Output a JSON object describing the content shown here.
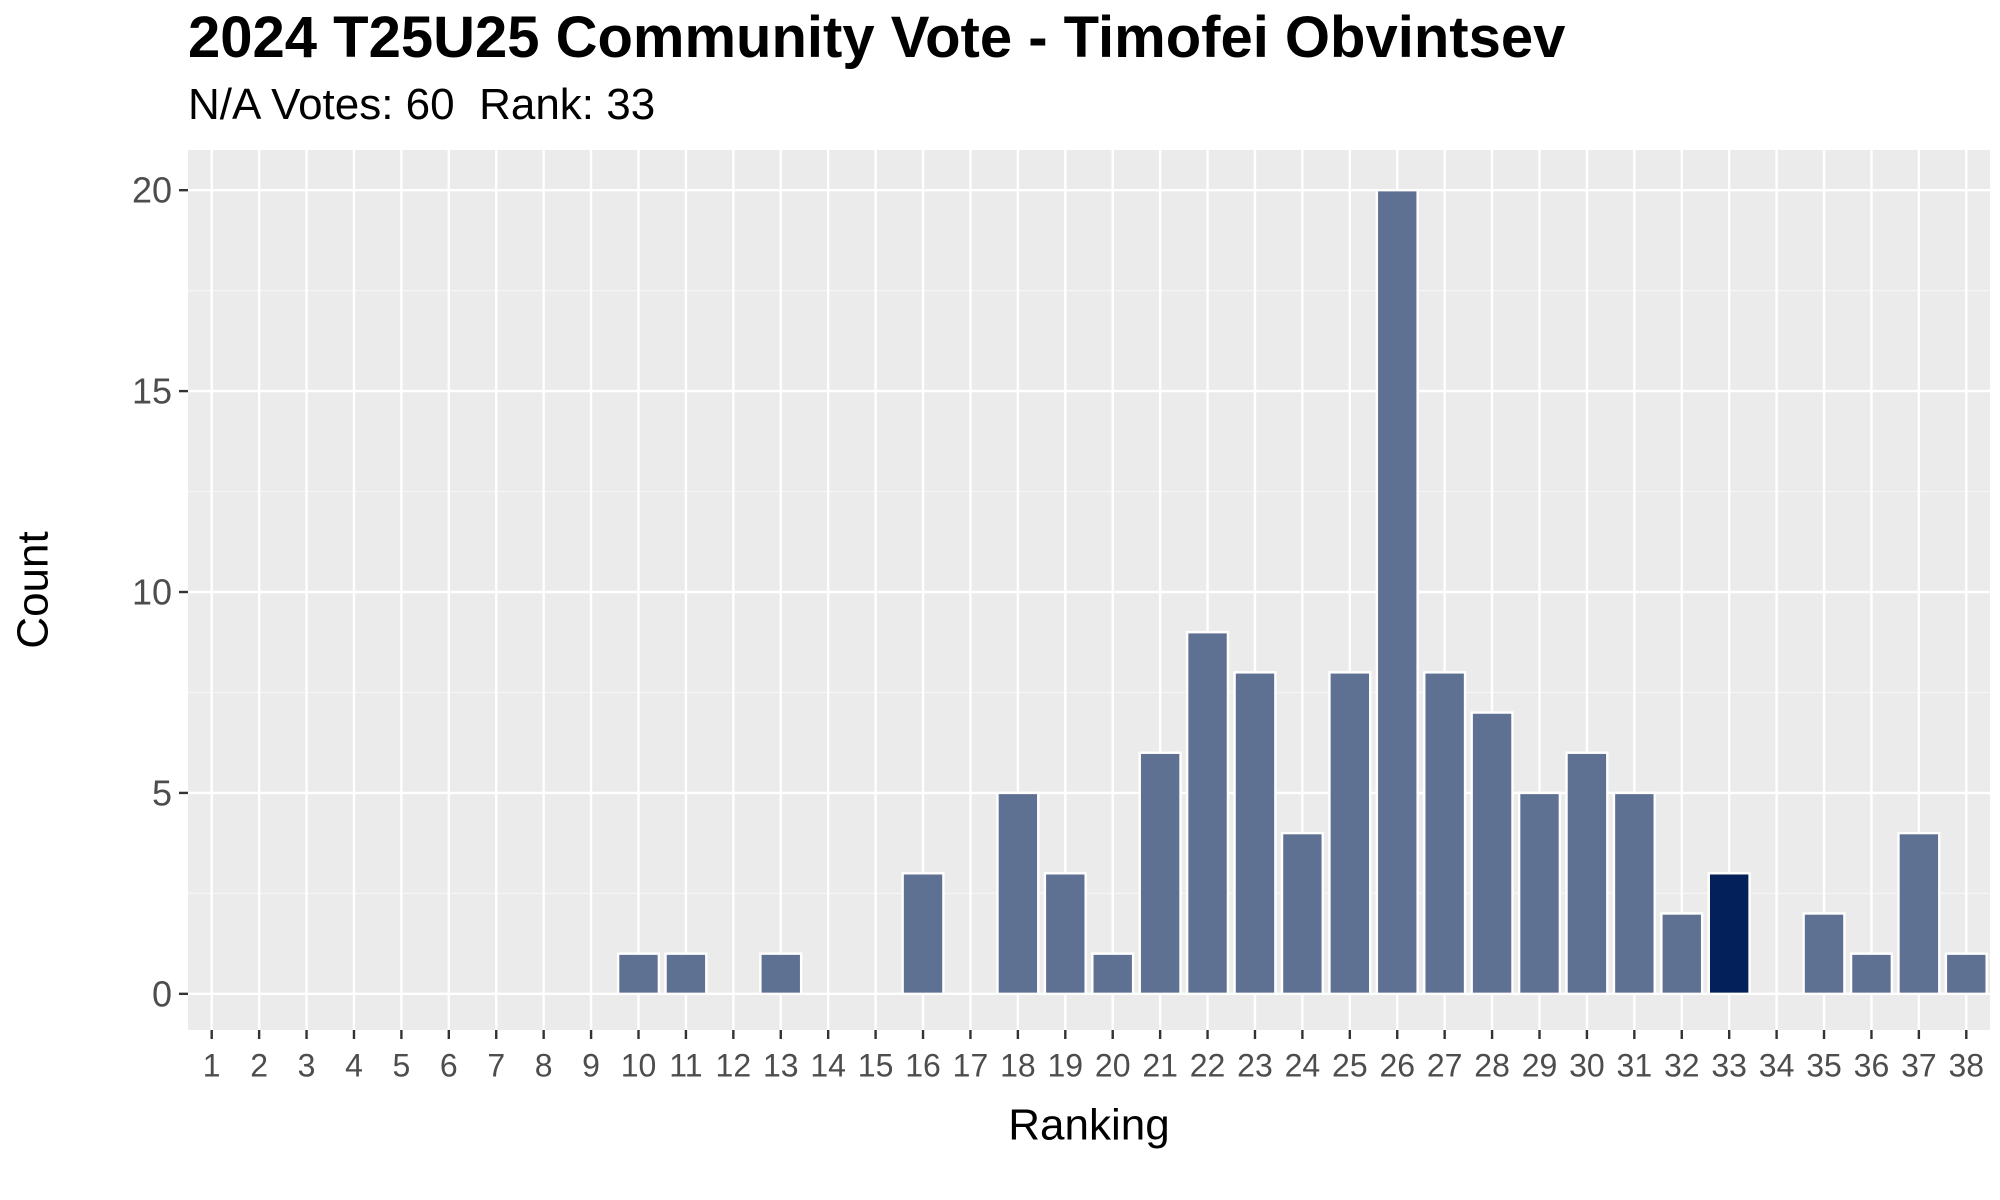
{
  "chart_data": {
    "type": "bar",
    "title": "2024 T25U25 Community Vote - Timofei Obvintsev",
    "subtitle": "N/A Votes: 60  Rank: 33",
    "xlabel": "Ranking",
    "ylabel": "Count",
    "categories": [
      "1",
      "2",
      "3",
      "4",
      "5",
      "6",
      "7",
      "8",
      "9",
      "10",
      "11",
      "12",
      "13",
      "14",
      "15",
      "16",
      "17",
      "18",
      "19",
      "20",
      "21",
      "22",
      "23",
      "24",
      "25",
      "26",
      "27",
      "28",
      "29",
      "30",
      "31",
      "32",
      "33",
      "34",
      "35",
      "36",
      "37",
      "38"
    ],
    "values": [
      0,
      0,
      0,
      0,
      0,
      0,
      0,
      0,
      0,
      1,
      1,
      0,
      1,
      0,
      0,
      3,
      0,
      5,
      3,
      1,
      6,
      9,
      8,
      4,
      8,
      20,
      8,
      7,
      5,
      6,
      5,
      2,
      3,
      0,
      2,
      1,
      4,
      1
    ],
    "highlight_category": "33",
    "ylim": [
      -0.9,
      21
    ],
    "yticks": [
      0,
      5,
      10,
      15,
      20
    ],
    "grid": true,
    "colors": {
      "bar": "#5f7193",
      "highlight": "#03205a",
      "panel": "#ebebeb",
      "grid_major": "#ffffff",
      "grid_minor": "#f5f5f5",
      "tick_label": "#4d4d4d"
    }
  }
}
